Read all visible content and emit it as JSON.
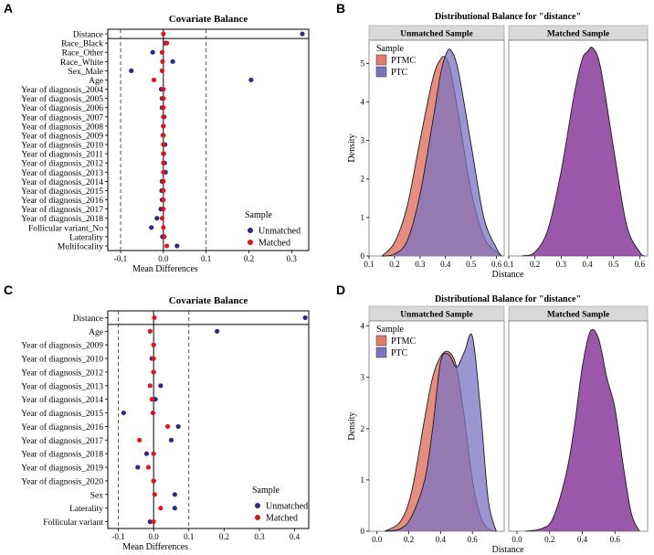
{
  "colors": {
    "unmatched": "#2a2a8c",
    "matched": "#e0141e",
    "ptmc": "#e07a6a",
    "ptc": "#7a72c2",
    "matched_density": "#8a3a9a",
    "strip_bg": "#d9d9d9"
  },
  "chart_data": [
    {
      "panel": "A",
      "type": "scatter",
      "title": "Covariate Balance",
      "xlabel": "Mean Differences",
      "xlim": [
        -0.13,
        0.34
      ],
      "xticks": [
        -0.1,
        0.0,
        0.1,
        0.2,
        0.3
      ],
      "xtick_labels": [
        "-0.1",
        "0.0",
        "0.1",
        "0.2",
        "0.3"
      ],
      "threshold_lines": [
        -0.1,
        0.1
      ],
      "legend": {
        "title": "Sample",
        "entries": [
          "Unmatched",
          "Matched"
        ],
        "position": "bottom-right"
      },
      "series": [
        {
          "name": "Unmatched",
          "values": [
            0.325,
            0.005,
            -0.025,
            0.022,
            -0.075,
            0.205,
            -0.005,
            -0.003,
            -0.003,
            0.002,
            0.0,
            -0.001,
            0.004,
            0.001,
            0.003,
            0.005,
            -0.003,
            -0.004,
            -0.003,
            -0.006,
            -0.015,
            -0.028,
            -0.002,
            0.032
          ]
        },
        {
          "name": "Matched",
          "values": [
            0.0,
            0.008,
            -0.003,
            -0.002,
            -0.003,
            -0.022,
            0.0,
            0.0,
            0.0,
            0.0,
            0.0,
            0.0,
            0.0,
            0.0,
            0.0,
            0.0,
            0.0,
            0.0,
            0.0,
            0.0,
            -0.003,
            0.0,
            0.002,
            0.008
          ]
        }
      ],
      "categories": [
        "Distance",
        "Race_Black",
        "Race_Other",
        "Race_White",
        "Sex_Male",
        "Age",
        "Year of diagnosis_2004",
        "Year of diagnosis_2005",
        "Year of diagnosis_2006",
        "Year of diagnosis_2007",
        "Year of diagnosis_2008",
        "Year of diagnosis_2009",
        "Year of diagnosis_2010",
        "Year of diagnosis_2011",
        "Year of diagnosis_2012",
        "Year of diagnosis_2013",
        "Year of diagnosis_2014",
        "Year of diagnosis_2015",
        "Year of diagnosis_2016",
        "Year of diagnosis_2017",
        "Year of diagnosis_2018",
        "Follicular variant_No",
        "Laterality",
        "Multifocality"
      ]
    },
    {
      "panel": "C",
      "type": "scatter",
      "title": "Covariate Balance",
      "xlabel": "Mean Differences",
      "xlim": [
        -0.13,
        0.44
      ],
      "xticks": [
        -0.1,
        0.0,
        0.1,
        0.2,
        0.3,
        0.4
      ],
      "xtick_labels": [
        "-0.1",
        "0.0",
        "0.1",
        "0.2",
        "0.3",
        "0.4"
      ],
      "threshold_lines": [
        -0.1,
        0.1
      ],
      "legend": {
        "title": "Sample",
        "entries": [
          "Unmatched",
          "Matched"
        ],
        "position": "bottom-right"
      },
      "series": [
        {
          "name": "Unmatched",
          "values": [
            0.43,
            0.18,
            0.0,
            -0.005,
            0.0,
            0.02,
            0.005,
            -0.085,
            0.07,
            0.05,
            -0.02,
            -0.045,
            0.0,
            0.06,
            0.06,
            -0.01
          ]
        },
        {
          "name": "Matched",
          "values": [
            0.002,
            -0.01,
            0.0,
            0.0,
            0.0,
            -0.01,
            -0.005,
            -0.002,
            0.04,
            -0.04,
            0.0,
            -0.015,
            0.0,
            0.003,
            0.02,
            0.0
          ]
        }
      ],
      "categories": [
        "Distance",
        "Age",
        "Year of diagnosis_2009",
        "Year of diagnosis_2010",
        "Year of diagnosis_2012",
        "Year of diagnosis_2013",
        "Year of diagnosis_2014",
        "Year of diagnosis_2015",
        "Year of diagnosis_2016",
        "Year of diagnosis_2017",
        "Year of diagnosis_2018",
        "Year of diagnosis_2019",
        "Year of diagnosis_2020",
        "Sex",
        "Laterality",
        "Follicular variant"
      ]
    },
    {
      "panel": "B",
      "type": "area",
      "title": "Distributional Balance for \"distance\"",
      "xlabel": "Distance",
      "ylabel": "Density",
      "xlim": [
        0.1,
        0.63
      ],
      "ylim": [
        0,
        5.6
      ],
      "xticks": [
        0.1,
        0.2,
        0.3,
        0.4,
        0.5,
        0.6
      ],
      "xtick_labels": [
        "0.1",
        "0.2",
        "0.3",
        "0.4",
        "0.5",
        "0.6"
      ],
      "yticks": [
        0,
        1,
        2,
        3,
        4,
        5
      ],
      "facets": [
        "Unmatched Sample",
        "Matched Sample"
      ],
      "legend": {
        "title": "Sample",
        "entries": [
          "PTMC",
          "PTC"
        ],
        "position": "top-left"
      },
      "x": [
        0.15,
        0.2,
        0.25,
        0.3,
        0.35,
        0.38,
        0.4,
        0.42,
        0.45,
        0.5,
        0.55,
        0.6,
        0.62
      ],
      "series": [
        {
          "name": "PTMC",
          "facet": "Unmatched Sample",
          "values": [
            0.0,
            0.35,
            1.3,
            3.0,
            4.6,
            5.1,
            5.15,
            4.8,
            3.7,
            1.7,
            0.5,
            0.1,
            0.0
          ]
        },
        {
          "name": "PTC",
          "facet": "Unmatched Sample",
          "values": [
            0.0,
            0.05,
            0.4,
            1.6,
            3.5,
            4.7,
            5.2,
            5.35,
            4.8,
            2.9,
            1.0,
            0.2,
            0.0
          ]
        },
        {
          "name": "Matched",
          "facet": "Matched Sample",
          "values": [
            0.0,
            0.1,
            0.7,
            2.2,
            4.2,
            5.1,
            5.3,
            5.4,
            4.9,
            2.8,
            0.8,
            0.1,
            0.0
          ]
        }
      ]
    },
    {
      "panel": "D",
      "type": "area",
      "title": "Distributional Balance for \"distance\"",
      "xlabel": "Distance",
      "ylabel": "Density",
      "xlim": [
        -0.05,
        0.8
      ],
      "ylim": [
        0,
        4.1
      ],
      "xticks": [
        0.0,
        0.2,
        0.4,
        0.6
      ],
      "xtick_labels": [
        "0.0",
        "0.2",
        "0.4",
        "0.6"
      ],
      "yticks": [
        0,
        1,
        2,
        3,
        4
      ],
      "facets": [
        "Unmatched Sample",
        "Matched Sample"
      ],
      "legend": {
        "title": "Sample",
        "entries": [
          "PTMC",
          "PTC"
        ],
        "position": "top-left"
      },
      "x": [
        0.05,
        0.15,
        0.22,
        0.3,
        0.35,
        0.4,
        0.45,
        0.5,
        0.55,
        0.6,
        0.65,
        0.7,
        0.75
      ],
      "series": [
        {
          "name": "PTMC",
          "facet": "Unmatched Sample",
          "values": [
            0.0,
            0.2,
            0.8,
            2.2,
            3.0,
            3.4,
            3.5,
            3.2,
            2.2,
            1.0,
            0.3,
            0.05,
            0.0
          ]
        },
        {
          "name": "PTC",
          "facet": "Unmatched Sample",
          "values": [
            0.0,
            0.05,
            0.3,
            1.0,
            2.0,
            3.3,
            3.45,
            3.2,
            3.5,
            3.8,
            2.4,
            0.6,
            0.0
          ]
        },
        {
          "name": "Matched",
          "facet": "Matched Sample",
          "values": [
            0.0,
            0.05,
            0.25,
            1.1,
            2.0,
            3.2,
            3.9,
            3.75,
            3.0,
            2.4,
            1.3,
            0.35,
            0.0
          ]
        }
      ]
    }
  ]
}
